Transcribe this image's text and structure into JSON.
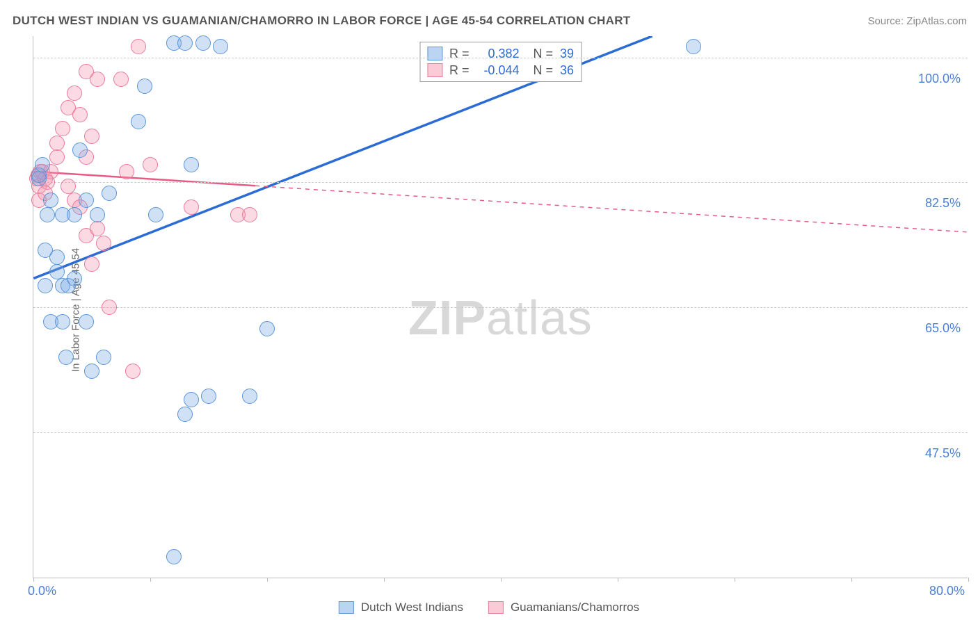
{
  "title": "DUTCH WEST INDIAN VS GUAMANIAN/CHAMORRO IN LABOR FORCE | AGE 45-54 CORRELATION CHART",
  "source": "Source: ZipAtlas.com",
  "ylabel": "In Labor Force | Age 45-54",
  "watermark_bold": "ZIP",
  "watermark_light": "atlas",
  "chart": {
    "type": "scatter",
    "xlim": [
      0,
      80
    ],
    "ylim": [
      27,
      103
    ],
    "y_ticks": [
      47.5,
      65.0,
      82.5,
      100.0
    ],
    "y_tick_labels": [
      "47.5%",
      "65.0%",
      "82.5%",
      "100.0%"
    ],
    "x_tick_positions": [
      0,
      10,
      20,
      30,
      40,
      50,
      60,
      70,
      80
    ],
    "x_axis_min_label": "0.0%",
    "x_axis_max_label": "80.0%",
    "grid_color": "#cccccc",
    "background_color": "#ffffff",
    "point_radius": 11,
    "colors": {
      "blue_fill": "rgba(120,170,230,0.35)",
      "blue_stroke": "#5a95d8",
      "pink_fill": "rgba(245,150,175,0.35)",
      "pink_stroke": "#e87a9a",
      "blue_line": "#2b6cd4",
      "pink_line": "#e85a85"
    },
    "series_blue": {
      "label": "Dutch West Indians",
      "r": "0.382",
      "n": "39",
      "points": [
        [
          0.5,
          83
        ],
        [
          0.5,
          83.5
        ],
        [
          0.8,
          85
        ],
        [
          1.2,
          78
        ],
        [
          1.5,
          80
        ],
        [
          1.0,
          73
        ],
        [
          1.0,
          68
        ],
        [
          2.0,
          70
        ],
        [
          2.5,
          68
        ],
        [
          2.0,
          72
        ],
        [
          3.0,
          68
        ],
        [
          3.5,
          69
        ],
        [
          1.5,
          63
        ],
        [
          2.5,
          63
        ],
        [
          2.8,
          58
        ],
        [
          4.5,
          63
        ],
        [
          6.0,
          58
        ],
        [
          5.0,
          56
        ],
        [
          2.5,
          78
        ],
        [
          3.5,
          78
        ],
        [
          4.5,
          80
        ],
        [
          5.5,
          78
        ],
        [
          9.0,
          91
        ],
        [
          10.5,
          78
        ],
        [
          9.5,
          96
        ],
        [
          12.0,
          102
        ],
        [
          13.0,
          102
        ],
        [
          14.5,
          102
        ],
        [
          16.0,
          101.5
        ],
        [
          13.5,
          52
        ],
        [
          15.0,
          52.5
        ],
        [
          18.5,
          52.5
        ],
        [
          13.0,
          50
        ],
        [
          20.0,
          62
        ],
        [
          13.5,
          85
        ],
        [
          12.0,
          30
        ],
        [
          56.5,
          101.5
        ],
        [
          4.0,
          87
        ],
        [
          6.5,
          81
        ]
      ],
      "trend": {
        "x1": 0,
        "y1": 69,
        "x2": 53,
        "y2": 103
      }
    },
    "series_pink": {
      "label": "Guamanians/Chamorros",
      "r": "-0.044",
      "n": "36",
      "points": [
        [
          0.3,
          83
        ],
        [
          0.4,
          83.5
        ],
        [
          0.6,
          84
        ],
        [
          0.5,
          82
        ],
        [
          0.8,
          84
        ],
        [
          1.0,
          83
        ],
        [
          1.2,
          82.5
        ],
        [
          0.5,
          80
        ],
        [
          1.0,
          81
        ],
        [
          1.5,
          84
        ],
        [
          2.0,
          86
        ],
        [
          2.5,
          90
        ],
        [
          3.0,
          93
        ],
        [
          3.5,
          95
        ],
        [
          4.0,
          92
        ],
        [
          4.5,
          98
        ],
        [
          5.5,
          97
        ],
        [
          7.5,
          97
        ],
        [
          2.0,
          88
        ],
        [
          4.5,
          86
        ],
        [
          5.0,
          89
        ],
        [
          3.5,
          80
        ],
        [
          4.0,
          79
        ],
        [
          4.5,
          75
        ],
        [
          5.0,
          71
        ],
        [
          5.5,
          76
        ],
        [
          6.0,
          74
        ],
        [
          6.5,
          65
        ],
        [
          8.5,
          56
        ],
        [
          8.0,
          84
        ],
        [
          10.0,
          85
        ],
        [
          9.0,
          101.5
        ],
        [
          13.5,
          79
        ],
        [
          17.5,
          78
        ],
        [
          18.5,
          78
        ],
        [
          3.0,
          82
        ]
      ],
      "trend_solid": {
        "x1": 0,
        "y1": 84,
        "x2": 19,
        "y2": 82
      },
      "trend_dashed": {
        "x1": 19,
        "y1": 82,
        "x2": 80,
        "y2": 75.5
      }
    }
  },
  "legend_top": {
    "r_label": "R =",
    "n_label": "N ="
  }
}
